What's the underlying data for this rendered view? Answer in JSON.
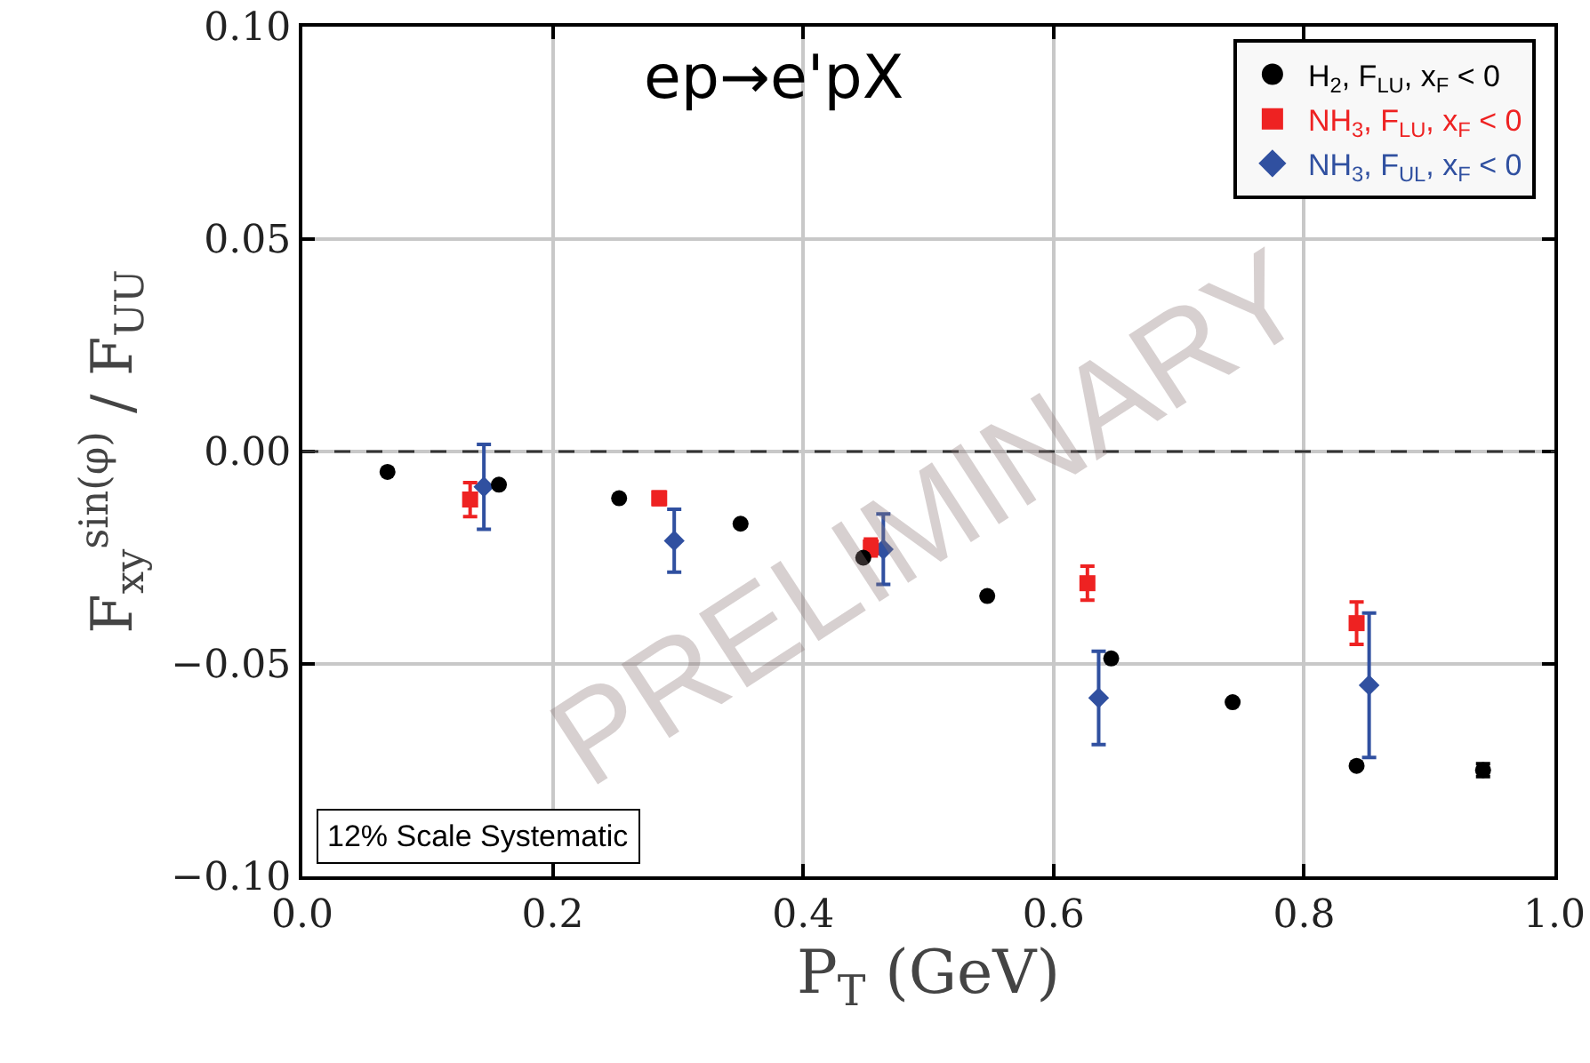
{
  "chart_data": {
    "type": "scatter",
    "xlabel": "P$_{T}$ (GeV)",
    "ylabel": "F$_{xy}$$^{sin(φ)}$ / F$_{UU}$",
    "series": [
      {
        "name": "H$_{2}$, F$_{LU}$, x$_{F}$ < 0",
        "color": "#000000",
        "marker": "circle",
        "x": [
          0.068,
          0.157,
          0.253,
          0.35,
          0.448,
          0.547,
          0.646,
          0.743,
          0.842,
          0.943
        ],
        "values": [
          -0.0048,
          -0.0078,
          -0.011,
          -0.017,
          -0.025,
          -0.034,
          -0.0487,
          -0.059,
          -0.074,
          -0.075
        ],
        "errors": [
          null,
          null,
          null,
          null,
          null,
          null,
          null,
          null,
          null,
          0.0015
        ]
      },
      {
        "name": "NH$_{3}$, F$_{LU}$, x$_{F}$ < 0",
        "color": "#ee2222",
        "marker": "square",
        "x": [
          0.134,
          0.285,
          0.454,
          0.627,
          0.842
        ],
        "values": [
          -0.0113,
          -0.011,
          -0.0226,
          -0.031,
          -0.0404
        ],
        "errors": [
          0.004,
          0.0015,
          0.002,
          0.004,
          0.005
        ]
      },
      {
        "name": "NH$_{3}$, F$_{UL}$, x$_{F}$ < 0",
        "color": "#3050a0",
        "marker": "diamond",
        "x": [
          0.145,
          0.297,
          0.464,
          0.636,
          0.852
        ],
        "values": [
          -0.0083,
          -0.021,
          -0.023,
          -0.058,
          -0.055
        ],
        "errors": [
          0.01,
          0.0074,
          0.0083,
          0.011,
          0.017
        ]
      }
    ],
    "xlim": [
      0.0,
      1.0
    ],
    "xticks": [
      {
        "value": 0,
        "label": "0.0"
      },
      0.2,
      0.4,
      0.6,
      0.8,
      {
        "value": 1,
        "label": "1.0"
      }
    ],
    "ylim": [
      -0.1,
      0.1
    ],
    "yticks": [
      {
        "value": -0.1,
        "label": "−0.10"
      },
      {
        "value": -0.05,
        "label": "−0.05"
      },
      {
        "value": 0,
        "label": "0.00"
      },
      0.05,
      {
        "value": 0.1,
        "label": "0.10"
      }
    ],
    "ref_lines": [
      {
        "axis": "y",
        "value": 0,
        "color": "#333333",
        "line_style": "dashed"
      }
    ],
    "annotations": [
      "ep→e'pX",
      "12% Scale Systematic",
      "PRELIMINARY"
    ],
    "grid": true,
    "legend": "top right"
  }
}
